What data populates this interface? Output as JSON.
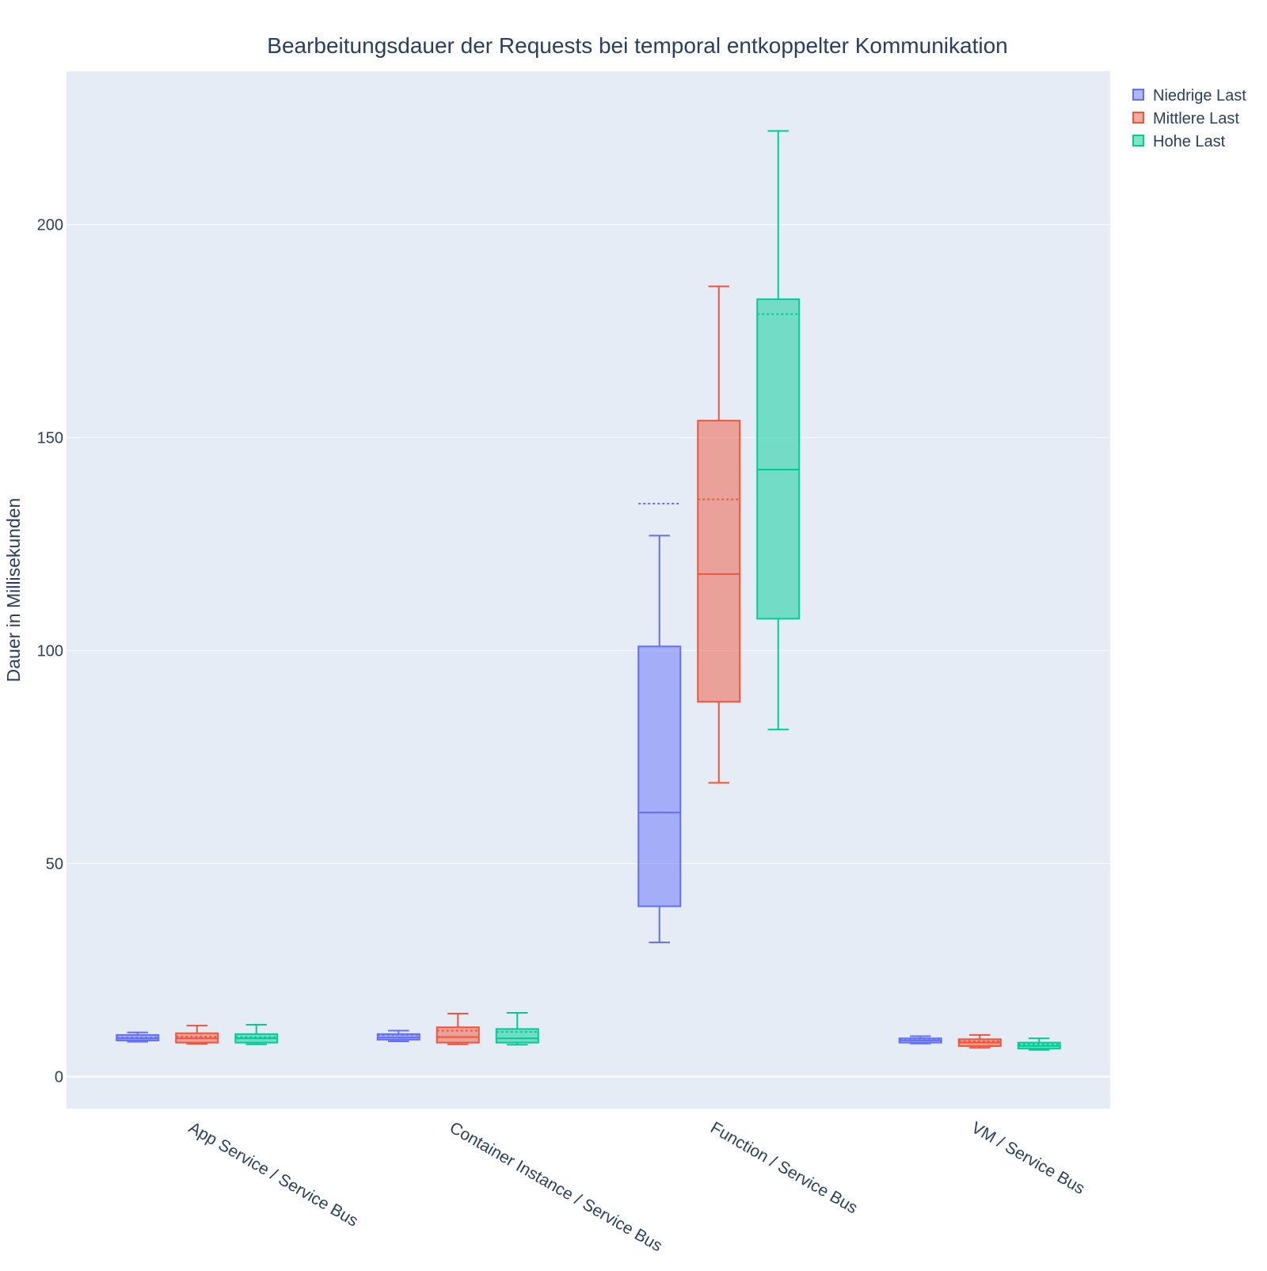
{
  "chart_data": {
    "type": "box",
    "title": "Bearbeitungsdauer der Requests bei temporal entkoppelter Kommunikation",
    "xlabel": "",
    "ylabel": "Dauer in Millisekunden",
    "ylim": [
      -7.5,
      236
    ],
    "yticks": [
      0,
      50,
      100,
      150,
      200
    ],
    "categories": [
      "App Service / Service Bus",
      "Container Instance / Service Bus",
      "Function / Service Bus",
      "VM / Service Bus"
    ],
    "grid": true,
    "legend_position": "top-right",
    "series": [
      {
        "name": "Niedrige Last",
        "color": "#636efa",
        "fill": "rgba(99,110,250,0.5)",
        "boxes": [
          {
            "min": 8.2,
            "q1": 8.5,
            "median": 9.0,
            "q3": 9.8,
            "max": 10.4,
            "mean": 9.2
          },
          {
            "min": 8.3,
            "q1": 8.7,
            "median": 9.2,
            "q3": 10.0,
            "max": 10.8,
            "mean": 9.8
          },
          {
            "min": 31.5,
            "q1": 40.0,
            "median": 62.0,
            "q3": 101.0,
            "max": 127.0,
            "mean": 134.5
          },
          {
            "min": 7.8,
            "q1": 8.0,
            "median": 8.5,
            "q3": 9.0,
            "max": 9.5,
            "mean": 8.6
          }
        ]
      },
      {
        "name": "Mittlere Last",
        "color": "#ef553b",
        "fill": "rgba(239,85,59,0.5)",
        "boxes": [
          {
            "min": 7.7,
            "q1": 8.0,
            "median": 9.0,
            "q3": 10.2,
            "max": 12.0,
            "mean": 9.4
          },
          {
            "min": 7.6,
            "q1": 8.0,
            "median": 9.3,
            "q3": 11.6,
            "max": 14.8,
            "mean": 10.8
          },
          {
            "min": 69.0,
            "q1": 88.0,
            "median": 118.0,
            "q3": 154.0,
            "max": 185.5,
            "mean": 135.5
          },
          {
            "min": 6.8,
            "q1": 7.2,
            "median": 8.0,
            "q3": 8.8,
            "max": 9.8,
            "mean": 8.3
          }
        ]
      },
      {
        "name": "Hohe Last",
        "color": "#00cc96",
        "fill": "rgba(0,204,150,0.5)",
        "boxes": [
          {
            "min": 7.6,
            "q1": 8.0,
            "median": 9.0,
            "q3": 10.0,
            "max": 12.2,
            "mean": 9.3
          },
          {
            "min": 7.5,
            "q1": 8.0,
            "median": 9.0,
            "q3": 11.2,
            "max": 15.0,
            "mean": 10.5
          },
          {
            "min": 81.5,
            "q1": 107.5,
            "median": 142.5,
            "q3": 182.5,
            "max": 222.0,
            "mean": 179.0
          },
          {
            "min": 6.3,
            "q1": 6.6,
            "median": 7.2,
            "q3": 8.0,
            "max": 9.0,
            "mean": 7.6
          }
        ]
      }
    ]
  }
}
